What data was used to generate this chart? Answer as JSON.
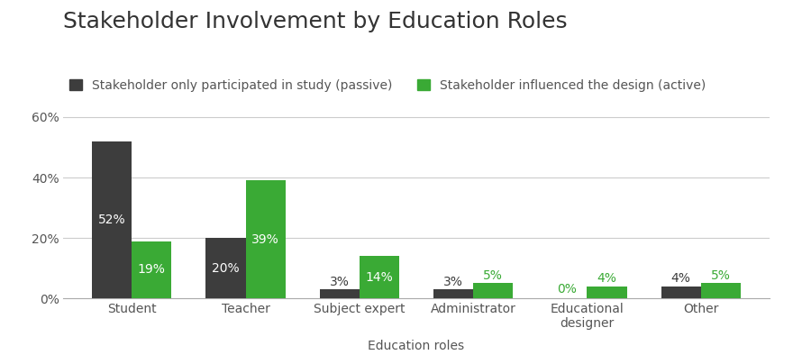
{
  "title": "Stakeholder Involvement by Education Roles",
  "categories": [
    "Student",
    "Teacher",
    "Subject expert",
    "Administrator",
    "Educational\ndesigner",
    "Other"
  ],
  "passive_values": [
    52,
    20,
    3,
    3,
    0,
    4
  ],
  "active_values": [
    19,
    39,
    14,
    5,
    4,
    5
  ],
  "passive_labels": [
    "52%",
    "20%",
    "3%",
    "3%",
    "0%",
    "4%"
  ],
  "active_labels": [
    "19%",
    "39%",
    "14%",
    "5%",
    "4%",
    "5%"
  ],
  "passive_color": "#3d3d3d",
  "active_color": "#3aaa35",
  "passive_legend": "Stakeholder only participated in study (passive)",
  "active_legend": "Stakeholder influenced the design (active)",
  "xlabel": "Education roles",
  "ylabel": "",
  "ylim": [
    0,
    65
  ],
  "yticks": [
    0,
    20,
    40,
    60
  ],
  "ytick_labels": [
    "0%",
    "20%",
    "40%",
    "60%"
  ],
  "background_color": "#ffffff",
  "grid_color": "#cccccc",
  "title_fontsize": 18,
  "label_fontsize": 10,
  "tick_fontsize": 10,
  "legend_fontsize": 10,
  "xlabel_fontsize": 10,
  "bar_width": 0.35
}
